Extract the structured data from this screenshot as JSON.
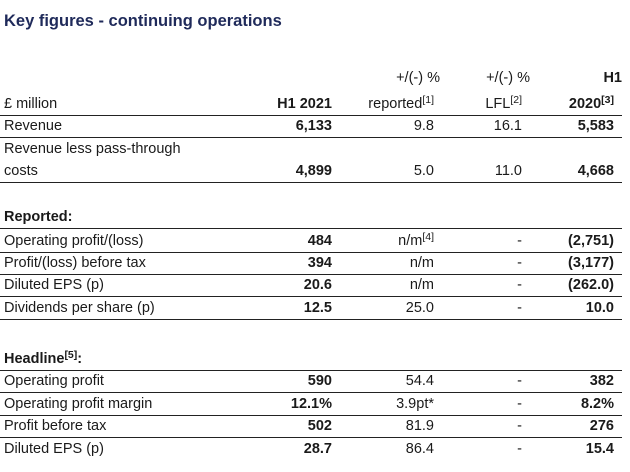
{
  "title": "Key figures - continuing operations",
  "header": {
    "top": {
      "col2": "+/(-) %",
      "col3": "+/(-) %",
      "col4": "H1"
    },
    "label": "£ million",
    "col1": "H1 2021",
    "col2": "reported",
    "col2_note": "[1]",
    "col3": "LFL",
    "col3_note": "[2]",
    "col4": "2020",
    "col4_note": "[3]"
  },
  "rows": {
    "revenue": {
      "label": "Revenue",
      "h1_2021": "6,133",
      "reported": "9.8",
      "lfl": "16.1",
      "h1_2020": "5,583"
    },
    "rlpt": {
      "label_line1": "Revenue less pass-through",
      "label_line2": "costs",
      "h1_2021": "4,899",
      "reported": "5.0",
      "lfl": "11.0",
      "h1_2020": "4,668"
    },
    "reported_heading": "Reported:",
    "op_profit_loss": {
      "label": "Operating profit/(loss)",
      "h1_2021": "484",
      "reported": "n/m",
      "reported_note": "[4]",
      "lfl": "-",
      "h1_2020": "(2,751)"
    },
    "pbt_loss": {
      "label": "Profit/(loss) before tax",
      "h1_2021": "394",
      "reported": "n/m",
      "lfl": "-",
      "h1_2020": "(3,177)"
    },
    "diluted_eps_rep": {
      "label": "Diluted EPS (p)",
      "h1_2021": "20.6",
      "reported": "n/m",
      "lfl": "-",
      "h1_2020": "(262.0)"
    },
    "dps": {
      "label": "Dividends per share (p)",
      "h1_2021": "12.5",
      "reported": "25.0",
      "lfl": "-",
      "h1_2020": "10.0"
    },
    "headline_heading": "Headline",
    "headline_note": "[5]",
    "headline_colon": ":",
    "op_profit": {
      "label": "Operating profit",
      "h1_2021": "590",
      "reported": "54.4",
      "lfl": "-",
      "h1_2020": "382"
    },
    "op_margin": {
      "label": "Operating profit margin",
      "h1_2021": "12.1%",
      "reported": "3.9pt*",
      "lfl": "-",
      "h1_2020": "8.2%"
    },
    "pbt": {
      "label": "Profit before tax",
      "h1_2021": "502",
      "reported": "81.9",
      "lfl": "-",
      "h1_2020": "276"
    },
    "diluted_eps_head": {
      "label": "Diluted EPS (p)",
      "h1_2021": "28.7",
      "reported": "86.4",
      "lfl": "-",
      "h1_2020": "15.4"
    }
  }
}
